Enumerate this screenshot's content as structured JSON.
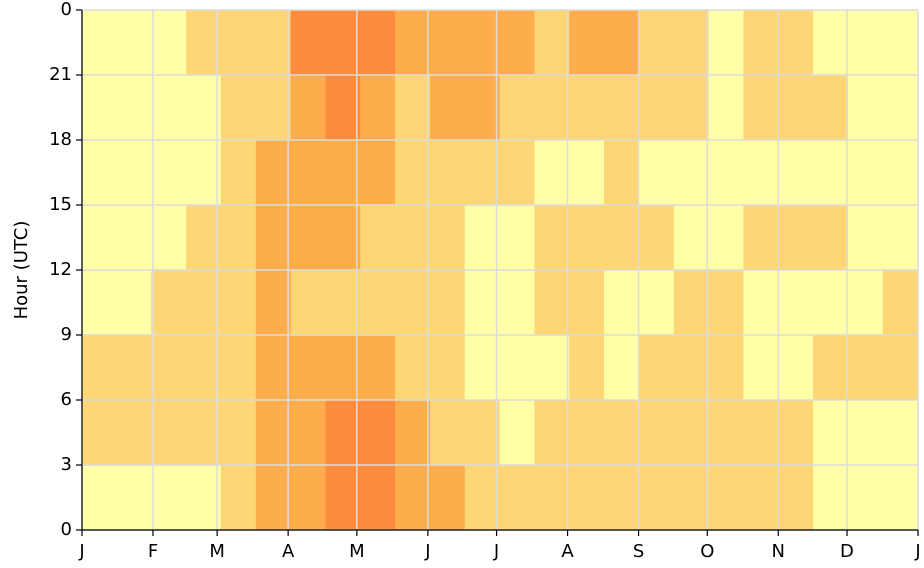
{
  "chart_data": {
    "type": "heatmap",
    "y_label": "Hour (UTC)",
    "xlim": [
      0,
      365
    ],
    "xticks": [
      {
        "value": 0,
        "label": "J"
      },
      {
        "value": 31,
        "label": "F"
      },
      {
        "value": 59,
        "label": "M"
      },
      {
        "value": 90,
        "label": "A"
      },
      {
        "value": 120,
        "label": "M"
      },
      {
        "value": 151,
        "label": "J"
      },
      {
        "value": 181,
        "label": "J"
      },
      {
        "value": 212,
        "label": "A"
      },
      {
        "value": 243,
        "label": "S"
      },
      {
        "value": 273,
        "label": "O"
      },
      {
        "value": 304,
        "label": "N"
      },
      {
        "value": 334,
        "label": "D"
      },
      {
        "value": 365,
        "label": "J"
      }
    ],
    "ylim": [
      0,
      24
    ],
    "yticks": [
      0,
      3,
      6,
      9,
      12,
      15,
      18,
      21,
      {
        "value": 24,
        "label": "0"
      }
    ],
    "grid": true,
    "level_colors": [
      "#ffffff",
      "#ffffa8",
      "#fed676",
      "#fdad4b",
      "#fd8c3c",
      "#e8332a"
    ],
    "z": [
      [
        1,
        1,
        1,
        1,
        2,
        3,
        3,
        4,
        4,
        3,
        3,
        2,
        2,
        2,
        2,
        2,
        2,
        2,
        2,
        2,
        2,
        1,
        1,
        1
      ],
      [
        2,
        2,
        2,
        2,
        2,
        3,
        3,
        4,
        4,
        3,
        2,
        2,
        1,
        2,
        2,
        2,
        2,
        2,
        2,
        2,
        2,
        1,
        1,
        1
      ],
      [
        2,
        2,
        2,
        2,
        2,
        3,
        3,
        3,
        3,
        2,
        2,
        1,
        1,
        1,
        2,
        1,
        2,
        2,
        2,
        1,
        1,
        2,
        2,
        2
      ],
      [
        1,
        1,
        2,
        2,
        2,
        3,
        2,
        2,
        2,
        2,
        2,
        1,
        1,
        2,
        2,
        1,
        1,
        2,
        2,
        1,
        1,
        1,
        1,
        2
      ],
      [
        1,
        1,
        1,
        2,
        2,
        3,
        3,
        3,
        2,
        2,
        2,
        1,
        1,
        2,
        2,
        2,
        2,
        1,
        1,
        2,
        2,
        2,
        1,
        1
      ],
      [
        1,
        1,
        1,
        1,
        2,
        3,
        3,
        3,
        3,
        2,
        2,
        2,
        2,
        1,
        1,
        2,
        1,
        1,
        1,
        1,
        1,
        1,
        1,
        1
      ],
      [
        1,
        1,
        1,
        1,
        2,
        2,
        3,
        4,
        3,
        2,
        3,
        3,
        2,
        2,
        2,
        2,
        2,
        2,
        1,
        2,
        2,
        2,
        1,
        1
      ],
      [
        1,
        1,
        1,
        2,
        2,
        2,
        4,
        4,
        4,
        3,
        3,
        3,
        3,
        2,
        3,
        3,
        2,
        2,
        1,
        2,
        2,
        1,
        1,
        1
      ]
    ]
  }
}
